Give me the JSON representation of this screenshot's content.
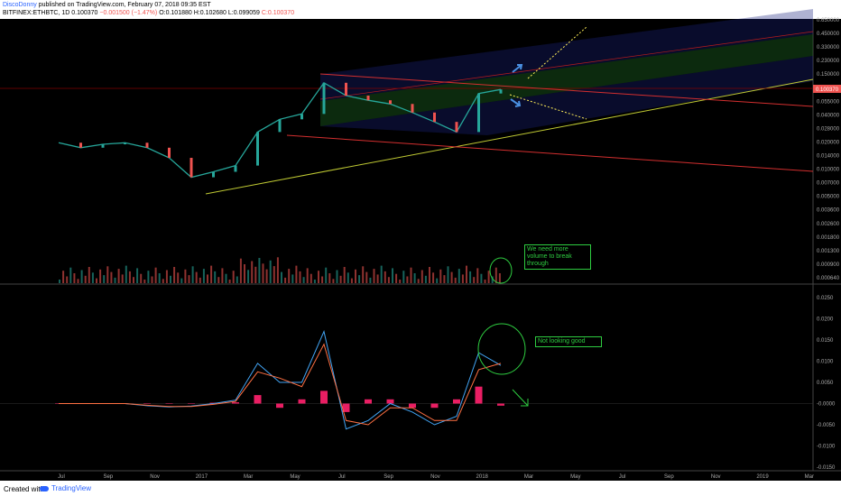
{
  "header": {
    "author": "DiscoDonny",
    "published": "published on TradingView.com, February 07, 2018 09:35 EST",
    "symbol": "BITFINEX:ETHBTC, 1D",
    "last": "0.100370",
    "change": "−0.001500 (−1.47%)",
    "ohlc": {
      "o": "O:0.101880",
      "h": "H:0.102680",
      "l": "L:0.099059",
      "c": "C:0.100370"
    }
  },
  "footer": {
    "created_with": "Created with",
    "brand": "TradingView"
  },
  "annotations": {
    "volume_note": "We need more volume to break through",
    "macd_note": "Not looking good"
  },
  "colors": {
    "up": "#26a69a",
    "down": "#ef5350",
    "accent_green": "#2ecc40",
    "trend_red": "#d32f2f"
  },
  "chart_data": [
    {
      "type": "line",
      "title": "BITFINEX:ETHBTC, 1D",
      "scale": "log",
      "x_ticks": [
        "Jul",
        "Sep",
        "Nov",
        "2017",
        "Mar",
        "May",
        "Jul",
        "Sep",
        "Nov",
        "2018",
        "Mar",
        "May",
        "Jul",
        "Sep",
        "Nov",
        "2019",
        "Mar"
      ],
      "y_ticks": [
        "0.650000",
        "0.450000",
        "0.330000",
        "0.230000",
        "0.150000",
        "0.080000",
        "0.055000",
        "0.040000",
        "0.028000",
        "0.020000",
        "0.014000",
        "0.010000",
        "0.007000",
        "0.005000",
        "0.003600",
        "0.002600",
        "0.001800",
        "0.001300",
        "0.000900",
        "0.000640"
      ],
      "last_price_label": "0.100370",
      "x": [
        "2016-06",
        "2016-07",
        "2016-08",
        "2016-09",
        "2016-10",
        "2016-11",
        "2016-12",
        "2017-01",
        "2017-02",
        "2017-03",
        "2017-04",
        "2017-05",
        "2017-06",
        "2017-07",
        "2017-08",
        "2017-09",
        "2017-10",
        "2017-11",
        "2017-12",
        "2018-01",
        "2018-02"
      ],
      "series": [
        {
          "values": [
            0.024,
            0.021,
            0.023,
            0.024,
            0.021,
            0.016,
            0.0095,
            0.011,
            0.013,
            0.032,
            0.045,
            0.052,
            0.12,
            0.085,
            0.075,
            0.068,
            0.054,
            0.042,
            0.032,
            0.09,
            0.1004
          ]
        }
      ],
      "grid": false
    },
    {
      "type": "line",
      "title": "MACD",
      "y_ticks": [
        "0.0250",
        "0.0200",
        "0.0150",
        "0.0100",
        "0.0050",
        "-0.0000",
        "-0.0050",
        "-0.0100",
        "-0.0150"
      ],
      "x": [
        "2016-06",
        "2016-07",
        "2016-08",
        "2016-09",
        "2016-10",
        "2016-11",
        "2016-12",
        "2017-01",
        "2017-02",
        "2017-03",
        "2017-04",
        "2017-05",
        "2017-06",
        "2017-07",
        "2017-08",
        "2017-09",
        "2017-10",
        "2017-11",
        "2017-12",
        "2018-01",
        "2018-02"
      ],
      "series": [
        {
          "values": [
            0.0,
            0.0,
            0.0,
            0.0,
            -0.0005,
            -0.0008,
            -0.0006,
            0.0,
            0.0008,
            0.0095,
            0.005,
            0.005,
            0.017,
            -0.006,
            -0.004,
            0.0,
            -0.002,
            -0.005,
            -0.003,
            0.012,
            0.009
          ]
        },
        {
          "values": [
            0.0,
            0.0,
            0.0,
            0.0,
            -0.0004,
            -0.0007,
            -0.0007,
            -0.0002,
            0.0005,
            0.0075,
            0.006,
            0.004,
            0.014,
            -0.004,
            -0.005,
            -0.001,
            -0.001,
            -0.004,
            -0.004,
            0.008,
            0.0095
          ]
        }
      ],
      "histogram": [
        0.0,
        0.0,
        0.0,
        0.0,
        -0.0001,
        -0.0001,
        0.0001,
        0.0002,
        0.0003,
        0.002,
        -0.001,
        0.001,
        0.003,
        -0.002,
        0.001,
        0.001,
        -0.001,
        -0.001,
        0.001,
        0.004,
        -0.0005
      ]
    }
  ]
}
